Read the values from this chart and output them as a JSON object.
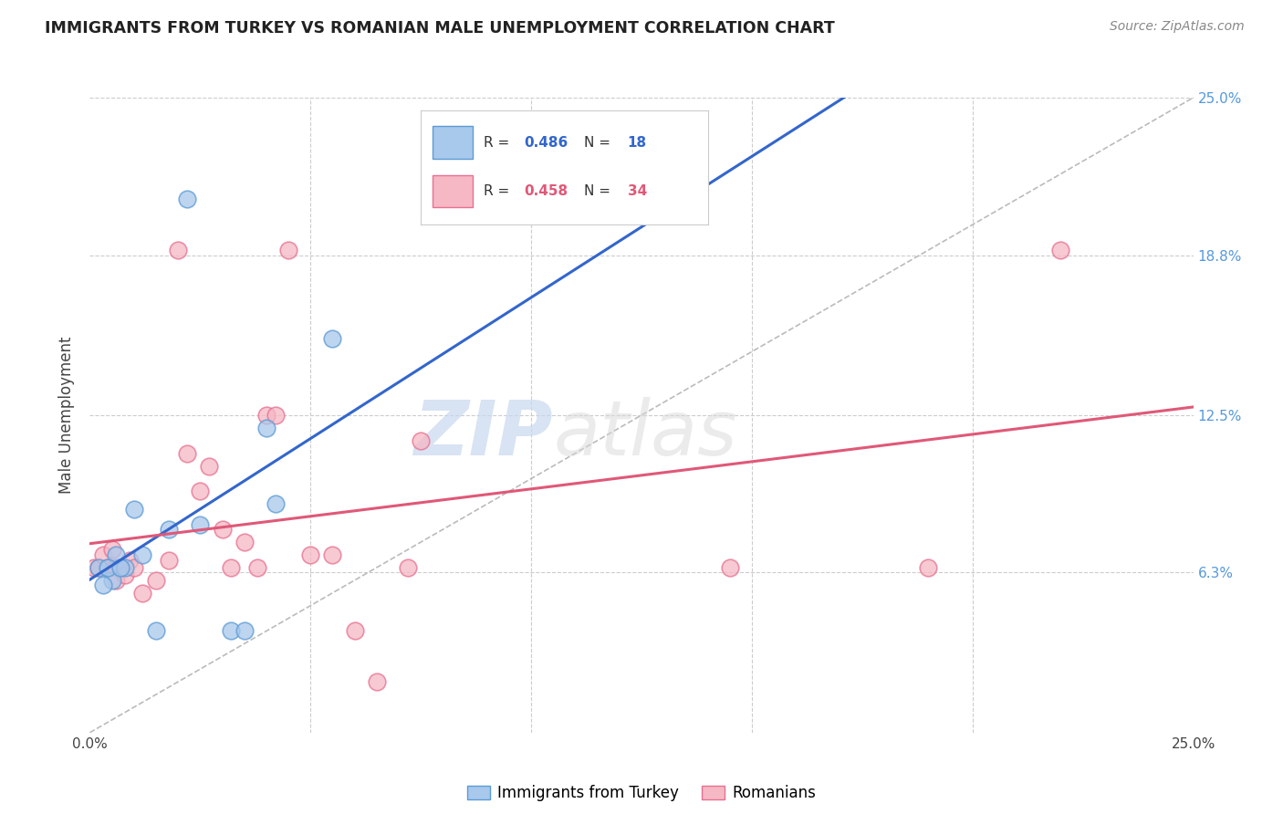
{
  "title": "IMMIGRANTS FROM TURKEY VS ROMANIAN MALE UNEMPLOYMENT CORRELATION CHART",
  "source": "Source: ZipAtlas.com",
  "ylabel": "Male Unemployment",
  "xlim": [
    0,
    0.25
  ],
  "ylim": [
    0,
    0.25
  ],
  "xticks": [
    0.0,
    0.05,
    0.1,
    0.15,
    0.2,
    0.25
  ],
  "ytick_labels": [
    "",
    "6.3%",
    "12.5%",
    "18.8%",
    "25.0%"
  ],
  "ytick_values": [
    0.0,
    0.063,
    0.125,
    0.188,
    0.25
  ],
  "legend_label1": "Immigrants from Turkey",
  "legend_label2": "Romanians",
  "R1": "0.486",
  "N1": "18",
  "R2": "0.458",
  "N2": "34",
  "color_blue_fill": "#A8C8EC",
  "color_pink_fill": "#F5B8C4",
  "color_blue_edge": "#5B9BD5",
  "color_pink_edge": "#E87090",
  "color_blue_line": "#3366CC",
  "color_pink_line": "#E05878",
  "color_diag": "#AAAAAA",
  "blue_x": [
    0.022,
    0.055,
    0.005,
    0.006,
    0.003,
    0.008,
    0.01,
    0.012,
    0.015,
    0.018,
    0.025,
    0.032,
    0.035,
    0.04,
    0.002,
    0.004,
    0.007,
    0.042
  ],
  "blue_y": [
    0.21,
    0.155,
    0.06,
    0.07,
    0.058,
    0.065,
    0.088,
    0.07,
    0.04,
    0.08,
    0.082,
    0.04,
    0.04,
    0.12,
    0.065,
    0.065,
    0.065,
    0.09
  ],
  "pink_x": [
    0.001,
    0.002,
    0.003,
    0.004,
    0.005,
    0.006,
    0.006,
    0.007,
    0.008,
    0.009,
    0.01,
    0.012,
    0.015,
    0.018,
    0.02,
    0.022,
    0.025,
    0.027,
    0.03,
    0.032,
    0.035,
    0.038,
    0.04,
    0.042,
    0.045,
    0.05,
    0.055,
    0.06,
    0.065,
    0.072,
    0.075,
    0.145,
    0.19,
    0.22
  ],
  "pink_y": [
    0.065,
    0.065,
    0.07,
    0.065,
    0.072,
    0.065,
    0.06,
    0.065,
    0.062,
    0.068,
    0.065,
    0.055,
    0.06,
    0.068,
    0.19,
    0.11,
    0.095,
    0.105,
    0.08,
    0.065,
    0.075,
    0.065,
    0.125,
    0.125,
    0.19,
    0.07,
    0.07,
    0.04,
    0.02,
    0.065,
    0.115,
    0.065,
    0.065,
    0.19
  ],
  "watermark_zip": "ZIP",
  "watermark_atlas": "atlas",
  "background_color": "#FFFFFF",
  "grid_color": "#CCCCCC"
}
